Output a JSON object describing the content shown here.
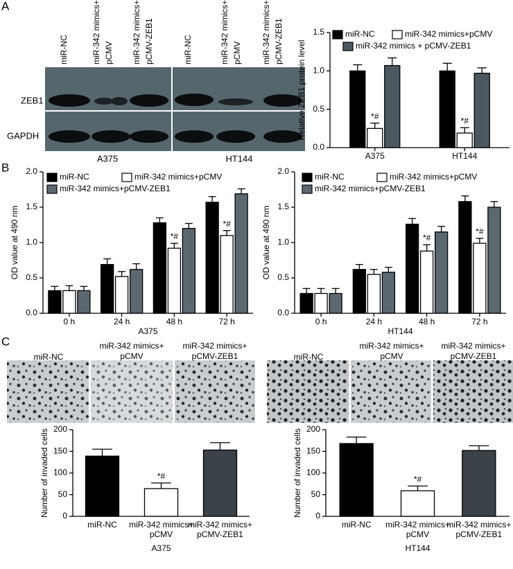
{
  "figure": {
    "panel_labels": [
      "A",
      "B",
      "C"
    ],
    "blot": {
      "rows": [
        "ZEB1",
        "GAPDH"
      ],
      "cell_lines": [
        "A375",
        "HT144"
      ],
      "lanes": [
        [
          "miR-NC"
        ],
        [
          "miR-342 mimics+",
          "pCMV"
        ],
        [
          "miR-342 mimics+",
          "pCMV-ZEB1"
        ]
      ]
    },
    "micrograph_labels": [
      [
        "miR-NC"
      ],
      [
        "miR-342 mimics+",
        "pCMV"
      ],
      [
        "miR-342 mimics+",
        "pCMV-ZEB1"
      ]
    ]
  },
  "chart_data": [
    {
      "type": "bar",
      "ylabel": "Relative ZEB1 protein level",
      "categories": [
        "A375",
        "HT144"
      ],
      "series": [
        {
          "name": "miR-NC",
          "color": "#000000",
          "values": [
            1.0,
            1.0
          ],
          "errors": [
            0.08,
            0.1
          ]
        },
        {
          "name": "miR-342 mimics+pCMV",
          "color": "#ffffff",
          "values": [
            0.25,
            0.19
          ],
          "errors": [
            0.07,
            0.07
          ],
          "markers": [
            "*#",
            "*#"
          ]
        },
        {
          "name": "miR-342 mimics + pCMV-ZEB1",
          "color": "#4c5860",
          "values": [
            1.07,
            0.97
          ],
          "errors": [
            0.1,
            0.07
          ]
        }
      ],
      "ylim": [
        0,
        1.5
      ],
      "yticks": [
        {
          "value": 0,
          "label": "0.0"
        },
        0.5,
        {
          "value": 1,
          "label": "1.0"
        },
        1.5
      ]
    },
    {
      "type": "bar",
      "ylabel": "OD value at 490 nm",
      "xlabel": "A375",
      "categories": [
        "0 h",
        "24 h",
        "48 h",
        "72 h"
      ],
      "series": [
        {
          "name": "miR-NC",
          "color": "#000000",
          "values": [
            0.32,
            0.69,
            1.28,
            1.57
          ],
          "errors": [
            0.06,
            0.08,
            0.07,
            0.08
          ]
        },
        {
          "name": "miR-342 mimics+pCMV",
          "color": "#ffffff",
          "values": [
            0.32,
            0.52,
            0.92,
            1.1
          ],
          "errors": [
            0.07,
            0.07,
            0.07,
            0.07
          ],
          "markers": [
            null,
            null,
            "*#",
            "*#"
          ]
        },
        {
          "name": "miR-342 mimics+pCMV-ZEB1",
          "color": "#5b6870",
          "values": [
            0.32,
            0.62,
            1.2,
            1.69
          ],
          "errors": [
            0.06,
            0.08,
            0.07,
            0.07
          ]
        }
      ],
      "ylim": [
        0,
        2
      ],
      "yticks": [
        {
          "value": 0,
          "label": "0.0"
        },
        0.5,
        {
          "value": 1,
          "label": "1.0"
        },
        1.5,
        {
          "value": 2,
          "label": "2.0"
        }
      ]
    },
    {
      "type": "bar",
      "ylabel": "OD value at 490 nm",
      "xlabel": "HT144",
      "categories": [
        "0 h",
        "24 h",
        "48 h",
        "72 h"
      ],
      "series": [
        {
          "name": "miR-NC",
          "color": "#000000",
          "values": [
            0.28,
            0.62,
            1.26,
            1.58
          ],
          "errors": [
            0.07,
            0.07,
            0.08,
            0.08
          ]
        },
        {
          "name": "miR-342 mimics+pCMV",
          "color": "#ffffff",
          "values": [
            0.28,
            0.55,
            0.88,
            0.99
          ],
          "errors": [
            0.07,
            0.07,
            0.09,
            0.07
          ],
          "markers": [
            null,
            null,
            "*#",
            "*#"
          ]
        },
        {
          "name": "miR-342 mimics+pCMV-ZEB1",
          "color": "#5b6870",
          "values": [
            0.28,
            0.58,
            1.15,
            1.5
          ],
          "errors": [
            0.07,
            0.07,
            0.08,
            0.08
          ]
        }
      ],
      "ylim": [
        0,
        2
      ],
      "yticks": [
        {
          "value": 0,
          "label": "0.0"
        },
        0.5,
        {
          "value": 1,
          "label": "1.0"
        },
        1.5,
        {
          "value": 2,
          "label": "2.0"
        }
      ]
    },
    {
      "type": "bar",
      "ylabel": "Number of invaded cells",
      "xlabel": "A375",
      "categories": [
        [
          "miR-NC"
        ],
        [
          "miR-342 mimics+",
          "pCMV"
        ],
        [
          "miR-342 mimics+",
          "pCMV-ZEB1"
        ]
      ],
      "values": [
        139,
        64,
        153
      ],
      "errors": [
        16,
        13,
        17
      ],
      "colors": [
        "#000000",
        "#ffffff",
        "#3b4248"
      ],
      "markers": [
        null,
        "*#",
        null
      ],
      "ylim": [
        0,
        200
      ],
      "yticks": [
        0,
        50,
        100,
        150,
        200
      ]
    },
    {
      "type": "bar",
      "ylabel": "Number of invaded cells",
      "xlabel": "HT144",
      "categories": [
        [
          "miR-NC"
        ],
        [
          "miR-342 mimics+",
          "pCMV"
        ],
        [
          "miR-342 mimics+",
          "pCMV-ZEB1"
        ]
      ],
      "values": [
        168,
        59,
        152
      ],
      "errors": [
        15,
        11,
        11
      ],
      "colors": [
        "#000000",
        "#ffffff",
        "#3b4248"
      ],
      "markers": [
        null,
        "*#",
        null
      ],
      "ylim": [
        0,
        200
      ],
      "yticks": [
        0,
        50,
        100,
        150,
        200
      ]
    }
  ]
}
